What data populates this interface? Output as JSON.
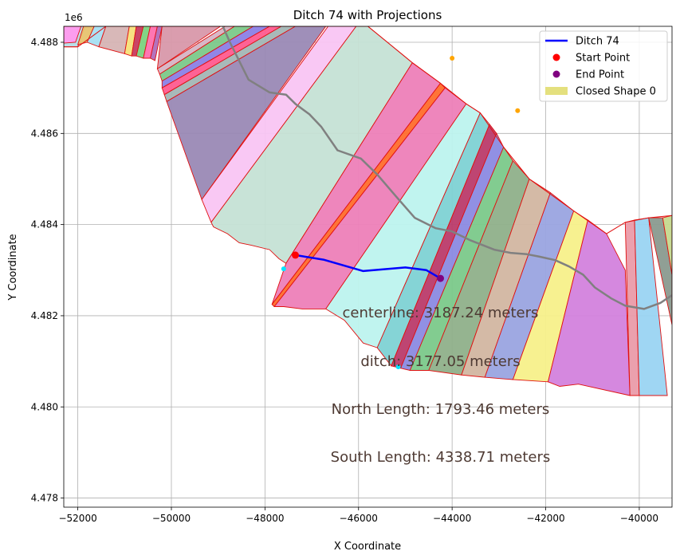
{
  "chart_data": {
    "type": "scatter",
    "title": "Ditch 74 with Projections",
    "xlabel": "X Coordinate",
    "ylabel": "Y Coordinate",
    "y_offset_label": "1e6",
    "xlim": [
      -52300,
      -39300
    ],
    "ylim": [
      4477800,
      4488350
    ],
    "xticks": [
      -52000,
      -50000,
      -48000,
      -46000,
      -44000,
      -42000,
      -40000
    ],
    "xtick_labels": [
      "−52000",
      "−50000",
      "−48000",
      "−46000",
      "−44000",
      "−42000",
      "−40000"
    ],
    "yticks": [
      4478000,
      4480000,
      4482000,
      4484000,
      4486000,
      4488000
    ],
    "ytick_labels": [
      "4.478",
      "4.480",
      "4.482",
      "4.484",
      "4.486",
      "4.488"
    ],
    "grid": true,
    "legend_position": "top-right",
    "legend": [
      {
        "label": "Ditch 74",
        "kind": "line",
        "color": "#0000ff"
      },
      {
        "label": "Start Point",
        "kind": "marker",
        "color": "#ff0000"
      },
      {
        "label": "End Point",
        "kind": "marker",
        "color": "#800080"
      },
      {
        "label": "Closed Shape 0",
        "kind": "patch",
        "color": "#e4e07e"
      }
    ],
    "ditch_line": {
      "name": "Ditch 74",
      "color": "#0000ff",
      "x": [
        -47350,
        -46750,
        -45900,
        -45000,
        -44550,
        -44250
      ],
      "y": [
        4483330,
        4483230,
        4482980,
        4483060,
        4483000,
        4482820
      ]
    },
    "centerline": {
      "color": "#808080",
      "x": [
        -48900,
        -48750,
        -48350,
        -47900,
        -47550,
        -47350,
        -47050,
        -46800,
        -46450,
        -45950,
        -45600,
        -45200,
        -44800,
        -44350,
        -44000,
        -43600,
        -43100,
        -42750,
        -42400,
        -42150,
        -41800,
        -41500,
        -41200,
        -40950,
        -40600,
        -40300,
        -39900,
        -39550,
        -39300
      ],
      "y": [
        4488350,
        4488000,
        4487180,
        4486900,
        4486850,
        4486650,
        4486420,
        4486150,
        4485630,
        4485450,
        4485100,
        4484620,
        4484150,
        4483920,
        4483850,
        4483650,
        4483450,
        4483380,
        4483350,
        4483300,
        4483220,
        4483080,
        4482900,
        4482620,
        4482380,
        4482220,
        4482150,
        4482280,
        4482450
      ]
    },
    "start_point": {
      "x": -47350,
      "y": 4483330,
      "color": "#ff0000"
    },
    "end_point": {
      "x": -44250,
      "y": 4482820,
      "color": "#800080"
    },
    "projection_points": [
      {
        "x": -47600,
        "y": 4483030,
        "color": "#00e5ff"
      },
      {
        "x": -45150,
        "y": 4480880,
        "color": "#00e5ff"
      },
      {
        "x": -44000,
        "y": 4487650,
        "color": "#ffa500"
      },
      {
        "x": -42600,
        "y": 4486500,
        "color": "#ffa500"
      }
    ],
    "annotations": [
      {
        "text": "centerline: 3187.24 meters",
        "x": -44250,
        "y": 4481960
      },
      {
        "text": "ditch: 3177.05 meters",
        "x": -44250,
        "y": 4480900
      },
      {
        "text": "North Length: 1793.46 meters",
        "x": -44250,
        "y": 4479850
      },
      {
        "text": "South Length: 4338.71 meters",
        "x": -44250,
        "y": 4478800
      }
    ],
    "outline_color": "#e01010",
    "polygons": [
      {
        "color": "#b5dde8",
        "points": [
          [
            -52300,
            4487900
          ],
          [
            -52000,
            4487900
          ],
          [
            -51850,
            4488350
          ],
          [
            -52300,
            4488350
          ]
        ]
      },
      {
        "color": "#ff99ee",
        "points": [
          [
            -52300,
            4487980
          ],
          [
            -52050,
            4488000
          ],
          [
            -51930,
            4488350
          ],
          [
            -52300,
            4488350
          ]
        ]
      },
      {
        "color": "#e7c36f",
        "points": [
          [
            -52000,
            4487950
          ],
          [
            -51800,
            4488000
          ],
          [
            -51650,
            4488350
          ],
          [
            -51880,
            4488350
          ]
        ]
      },
      {
        "color": "#a7dff2",
        "points": [
          [
            -51800,
            4488000
          ],
          [
            -51550,
            4487900
          ],
          [
            -51400,
            4488350
          ],
          [
            -51650,
            4488350
          ]
        ]
      },
      {
        "color": "#d6b4b4",
        "points": [
          [
            -51550,
            4487900
          ],
          [
            -51000,
            4487750
          ],
          [
            -50900,
            4488350
          ],
          [
            -51400,
            4488350
          ]
        ]
      },
      {
        "color": "#f7e07a",
        "points": [
          [
            -51000,
            4487750
          ],
          [
            -50850,
            4487700
          ],
          [
            -50750,
            4488350
          ],
          [
            -50900,
            4488350
          ]
        ]
      },
      {
        "color": "#c73b5e",
        "points": [
          [
            -50850,
            4487700
          ],
          [
            -50750,
            4487700
          ],
          [
            -50600,
            4488350
          ],
          [
            -50750,
            4488350
          ]
        ]
      },
      {
        "color": "#7bd37f",
        "points": [
          [
            -50750,
            4487700
          ],
          [
            -50600,
            4487650
          ],
          [
            -50450,
            4488350
          ],
          [
            -50600,
            4488350
          ]
        ]
      },
      {
        "color": "#ff6fae",
        "points": [
          [
            -50600,
            4487650
          ],
          [
            -50450,
            4487650
          ],
          [
            -50300,
            4488350
          ],
          [
            -50450,
            4488350
          ]
        ]
      },
      {
        "color": "#b06bb9",
        "points": [
          [
            -50450,
            4487650
          ],
          [
            -50350,
            4487600
          ],
          [
            -50200,
            4488350
          ],
          [
            -50300,
            4488350
          ]
        ]
      },
      {
        "color": "#d898aa",
        "points": [
          [
            -50300,
            4487420
          ],
          [
            -48950,
            4488350
          ],
          [
            -50200,
            4488350
          ]
        ]
      },
      {
        "color": "#d6b4c4",
        "points": [
          [
            -50300,
            4487420
          ],
          [
            -48850,
            4488350
          ],
          [
            -48650,
            4488350
          ],
          [
            -50250,
            4487300
          ]
        ]
      },
      {
        "color": "#7bc98a",
        "points": [
          [
            -50250,
            4487300
          ],
          [
            -48650,
            4488350
          ],
          [
            -48250,
            4488350
          ],
          [
            -50200,
            4487150
          ]
        ]
      },
      {
        "color": "#8b7fe6",
        "points": [
          [
            -50200,
            4487150
          ],
          [
            -48250,
            4488350
          ],
          [
            -47900,
            4488350
          ],
          [
            -50200,
            4487000
          ]
        ]
      },
      {
        "color": "#ff5b8f",
        "points": [
          [
            -50200,
            4487000
          ],
          [
            -47900,
            4488350
          ],
          [
            -47650,
            4488350
          ],
          [
            -50150,
            4486850
          ]
        ]
      },
      {
        "color": "#a3b6b5",
        "points": [
          [
            -50150,
            4486850
          ],
          [
            -47650,
            4488350
          ],
          [
            -47350,
            4488350
          ],
          [
            -50100,
            4486700
          ]
        ]
      },
      {
        "color": "#9a89b5",
        "points": [
          [
            -50100,
            4486700
          ],
          [
            -47350,
            4488350
          ],
          [
            -46700,
            4488350
          ],
          [
            -49350,
            4484550
          ]
        ]
      },
      {
        "color": "#f9c5f3",
        "points": [
          [
            -49350,
            4484550
          ],
          [
            -46650,
            4488350
          ],
          [
            -46050,
            4488350
          ],
          [
            -49150,
            4484050
          ]
        ]
      },
      {
        "color": "#c5e1d5",
        "points": [
          [
            -49150,
            4484050
          ],
          [
            -46050,
            4488350
          ],
          [
            -45800,
            4488350
          ],
          [
            -45500,
            4488100
          ],
          [
            -44850,
            4487550
          ],
          [
            -47550,
            4483150
          ],
          [
            -47700,
            4483250
          ],
          [
            -47900,
            4483450
          ],
          [
            -48300,
            4483550
          ],
          [
            -48550,
            4483600
          ],
          [
            -48800,
            4483800
          ],
          [
            -49100,
            4483950
          ]
        ]
      },
      {
        "color": "#ed80b8",
        "points": [
          [
            -47550,
            4483150
          ],
          [
            -44850,
            4487550
          ],
          [
            -44250,
            4487100
          ],
          [
            -47850,
            4482250
          ]
        ]
      },
      {
        "color": "#ff6d2c",
        "points": [
          [
            -47850,
            4482250
          ],
          [
            -44250,
            4487100
          ],
          [
            -44150,
            4487000
          ],
          [
            -47800,
            4482200
          ]
        ]
      },
      {
        "color": "#ed80b8",
        "points": [
          [
            -47800,
            4482200
          ],
          [
            -44150,
            4487000
          ],
          [
            -43700,
            4486650
          ],
          [
            -46700,
            4482150
          ],
          [
            -47200,
            4482150
          ],
          [
            -47600,
            4482200
          ]
        ]
      },
      {
        "color": "#bdf3ee",
        "points": [
          [
            -46700,
            4482150
          ],
          [
            -43700,
            4486650
          ],
          [
            -43400,
            4486450
          ],
          [
            -45600,
            4481300
          ],
          [
            -45900,
            4481400
          ],
          [
            -46300,
            4481900
          ]
        ]
      },
      {
        "color": "#7ed2d4",
        "points": [
          [
            -45600,
            4481300
          ],
          [
            -43400,
            4486450
          ],
          [
            -43200,
            4486200
          ],
          [
            -45300,
            4480900
          ]
        ]
      },
      {
        "color": "#bb3b6a",
        "points": [
          [
            -45300,
            4480900
          ],
          [
            -43200,
            4486200
          ],
          [
            -43050,
            4486000
          ],
          [
            -45100,
            4480850
          ]
        ]
      },
      {
        "color": "#8b8ae2",
        "points": [
          [
            -45100,
            4480850
          ],
          [
            -43050,
            4486000
          ],
          [
            -42900,
            4485700
          ],
          [
            -44900,
            4480800
          ]
        ]
      },
      {
        "color": "#7bc98a",
        "points": [
          [
            -44900,
            4480800
          ],
          [
            -42900,
            4485700
          ],
          [
            -42700,
            4485400
          ],
          [
            -44500,
            4480800
          ]
        ]
      },
      {
        "color": "#8fb08a",
        "points": [
          [
            -44500,
            4480800
          ],
          [
            -42700,
            4485400
          ],
          [
            -42350,
            4485000
          ],
          [
            -43800,
            4480700
          ]
        ]
      },
      {
        "color": "#d2b6a1",
        "points": [
          [
            -43800,
            4480700
          ],
          [
            -42350,
            4485000
          ],
          [
            -41900,
            4484700
          ],
          [
            -43300,
            4480650
          ]
        ]
      },
      {
        "color": "#9aa4e0",
        "points": [
          [
            -43300,
            4480650
          ],
          [
            -41900,
            4484700
          ],
          [
            -41400,
            4484300
          ],
          [
            -42700,
            4480600
          ]
        ]
      },
      {
        "color": "#f7f08a",
        "points": [
          [
            -42700,
            4480600
          ],
          [
            -41400,
            4484300
          ],
          [
            -41100,
            4484100
          ],
          [
            -41950,
            4480550
          ]
        ]
      },
      {
        "color": "#d382dd",
        "points": [
          [
            -41950,
            4480550
          ],
          [
            -41100,
            4484100
          ],
          [
            -40700,
            4483800
          ],
          [
            -40300,
            4483000
          ],
          [
            -40200,
            4480250
          ],
          [
            -41300,
            4480500
          ],
          [
            -41700,
            4480450
          ]
        ]
      },
      {
        "color": "#ea9ba9",
        "points": [
          [
            -40200,
            4480250
          ],
          [
            -40300,
            4484050
          ],
          [
            -40100,
            4484100
          ],
          [
            -40000,
            4480250
          ]
        ]
      },
      {
        "color": "#9ad4f2",
        "points": [
          [
            -40000,
            4480250
          ],
          [
            -40100,
            4484100
          ],
          [
            -39800,
            4484150
          ],
          [
            -39400,
            4480250
          ]
        ]
      },
      {
        "color": "#8a9a8f",
        "points": [
          [
            -39800,
            4484150
          ],
          [
            -39500,
            4484150
          ],
          [
            -39300,
            4482900
          ],
          [
            -39300,
            4481800
          ]
        ]
      },
      {
        "color": "#c5d98e",
        "points": [
          [
            -39500,
            4484150
          ],
          [
            -39300,
            4484200
          ],
          [
            -39300,
            4482900
          ]
        ]
      }
    ],
    "region_outline": [
      [
        -52300,
        4487900
      ],
      [
        -52000,
        4487900
      ],
      [
        -51400,
        4488350
      ],
      [
        -48950,
        4488350
      ],
      [
        -46050,
        4488350
      ],
      [
        -45800,
        4488350
      ],
      [
        -44850,
        4487550
      ],
      [
        -44250,
        4487100
      ],
      [
        -43700,
        4486650
      ],
      [
        -43400,
        4486450
      ],
      [
        -42900,
        4485700
      ],
      [
        -42350,
        4485000
      ],
      [
        -41400,
        4484300
      ],
      [
        -40700,
        4483800
      ],
      [
        -40300,
        4484050
      ],
      [
        -39800,
        4484150
      ],
      [
        -39300,
        4484200
      ]
    ]
  }
}
